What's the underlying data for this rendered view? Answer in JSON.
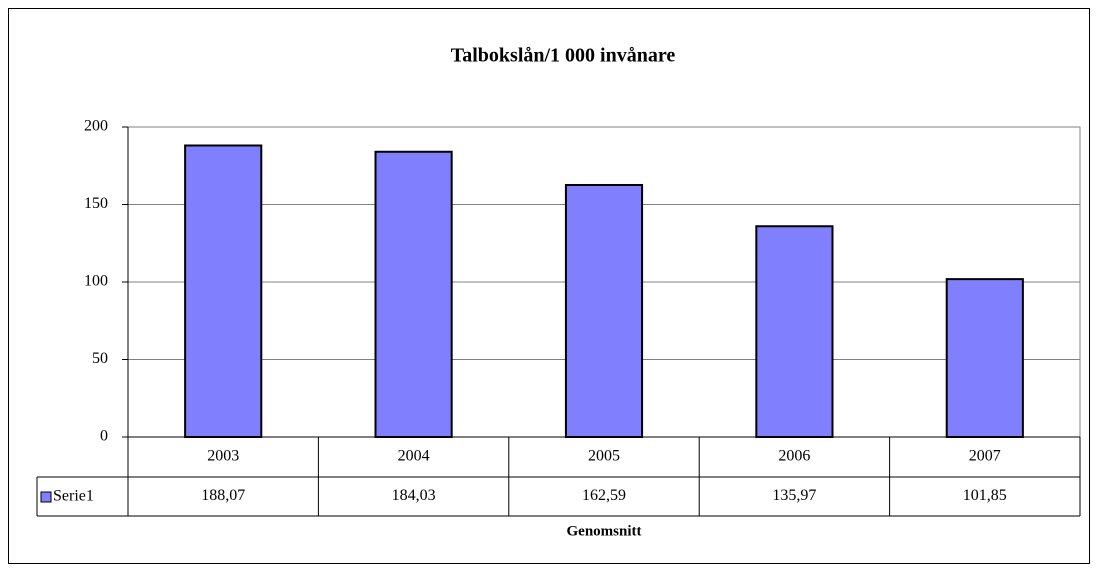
{
  "chart_data": {
    "type": "bar",
    "title": "Talbokslån/1 000 invånare",
    "categories": [
      "2003",
      "2004",
      "2005",
      "2006",
      "2007"
    ],
    "series": [
      {
        "name": "Serie1",
        "color": "#8080ff",
        "values": [
          188.07,
          184.03,
          162.59,
          135.97,
          101.85
        ],
        "value_labels": [
          "188,07",
          "184,03",
          "162,59",
          "135,97",
          "101,85"
        ]
      }
    ],
    "xlabel": "Genomsnitt",
    "ylim": [
      0,
      200
    ],
    "yticks": [
      0,
      50,
      100,
      150,
      200
    ],
    "grid": true
  }
}
